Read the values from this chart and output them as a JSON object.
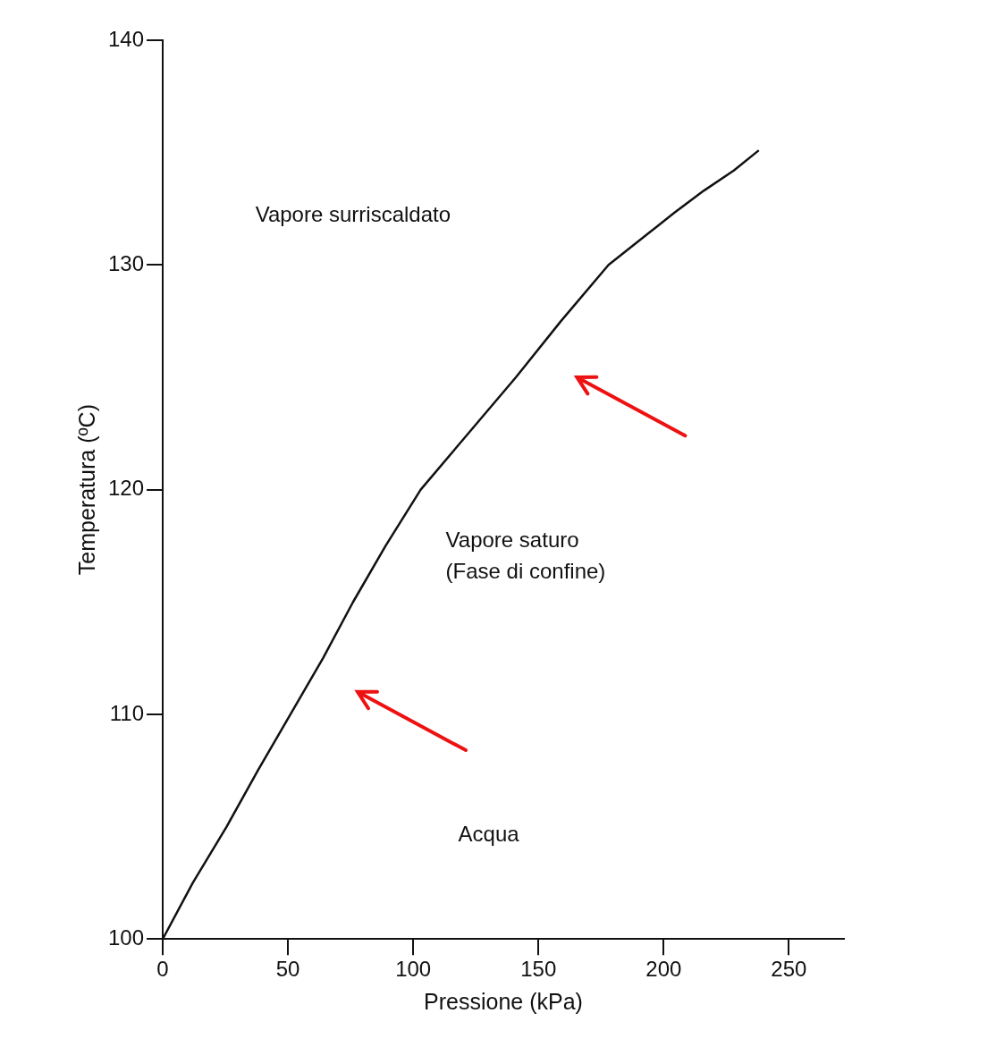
{
  "chart_data": {
    "type": "line",
    "xlabel": "Pressione (kPa)",
    "ylabel": "Temperatura (ºC)",
    "x": [
      0,
      12,
      25.5,
      38,
      51,
      64,
      76,
      89,
      103,
      122,
      141,
      159,
      178,
      195,
      204,
      216,
      228,
      238
    ],
    "series": [
      {
        "color": "#111111",
        "values": [
          100,
          102.5,
          105,
          107.5,
          110,
          112.5,
          115,
          117.5,
          120,
          122.5,
          125,
          127.5,
          130,
          131.5,
          132.3,
          133.3,
          134.2,
          135.1
        ]
      }
    ],
    "xlim": [
      0,
      272
    ],
    "ylim": [
      100,
      140
    ],
    "xticks": [
      0,
      50,
      100,
      150,
      200,
      250
    ],
    "yticks": [
      100,
      110,
      120,
      130,
      140
    ],
    "grid": false,
    "legend": false,
    "marker": "none",
    "line_style": "solid",
    "annotations": [
      "Vapore surriscaldato",
      "Vapore saturo",
      "(Fase di confine)",
      "Acqua"
    ]
  }
}
